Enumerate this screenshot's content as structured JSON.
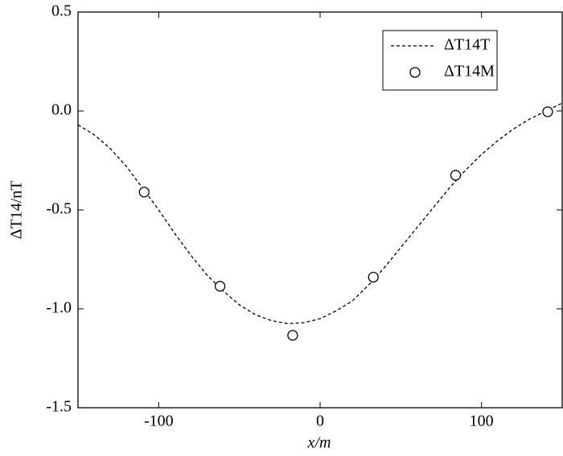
{
  "chart_data": {
    "type": "line",
    "x_label": "x/m",
    "y_label": "ΔT14/nT",
    "xlim": [
      -150,
      150
    ],
    "xticks": [
      -100,
      0,
      100
    ],
    "ylim": [
      -1.5,
      0.5
    ],
    "yticks": [
      0.5,
      {
        "value": 0,
        "label": "0.0"
      },
      -0.5,
      {
        "value": -1,
        "label": "-1.0"
      },
      -1.5
    ],
    "legend": "upper right",
    "series": [
      {
        "name": "ΔT14T",
        "kind": "line",
        "style": "dashed",
        "color": "#000000",
        "x": [
          -150,
          -140,
          -130,
          -120,
          -110,
          -100,
          -90,
          -80,
          -70,
          -60,
          -50,
          -40,
          -30,
          -20,
          -10,
          0,
          10,
          20,
          30,
          40,
          50,
          60,
          70,
          80,
          90,
          100,
          110,
          120,
          130,
          140,
          150
        ],
        "values": [
          -0.07,
          -0.12,
          -0.19,
          -0.28,
          -0.39,
          -0.5,
          -0.62,
          -0.73,
          -0.83,
          -0.91,
          -0.98,
          -1.03,
          -1.06,
          -1.075,
          -1.07,
          -1.05,
          -1.01,
          -0.96,
          -0.88,
          -0.79,
          -0.69,
          -0.59,
          -0.49,
          -0.39,
          -0.3,
          -0.22,
          -0.15,
          -0.09,
          -0.04,
          0,
          0.04
        ]
      },
      {
        "name": "ΔT14M",
        "kind": "scatter",
        "marker": "open-circle",
        "color": "#000000",
        "x": [
          -109,
          -62,
          -17,
          33,
          84,
          141
        ],
        "values": [
          -0.41,
          -0.886,
          -1.134,
          -0.84,
          -0.325,
          -0.004
        ]
      }
    ]
  }
}
